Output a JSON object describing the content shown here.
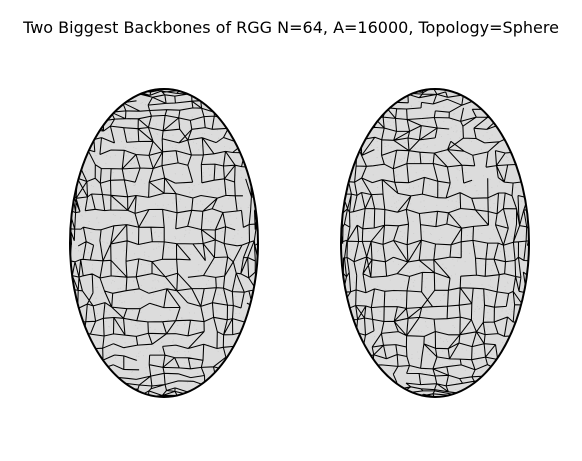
{
  "figure": {
    "title": "Two Biggest Backbones of RGG N=64, A=16000, Topology=Sphere"
  },
  "colors": {
    "background": "#ffffff",
    "sphere_fill": "#dcdcdc",
    "edge": "#000000",
    "node_dots": "#c8c8c8"
  },
  "panels": [
    {
      "name": "backbone-1"
    },
    {
      "name": "backbone-2"
    }
  ]
}
